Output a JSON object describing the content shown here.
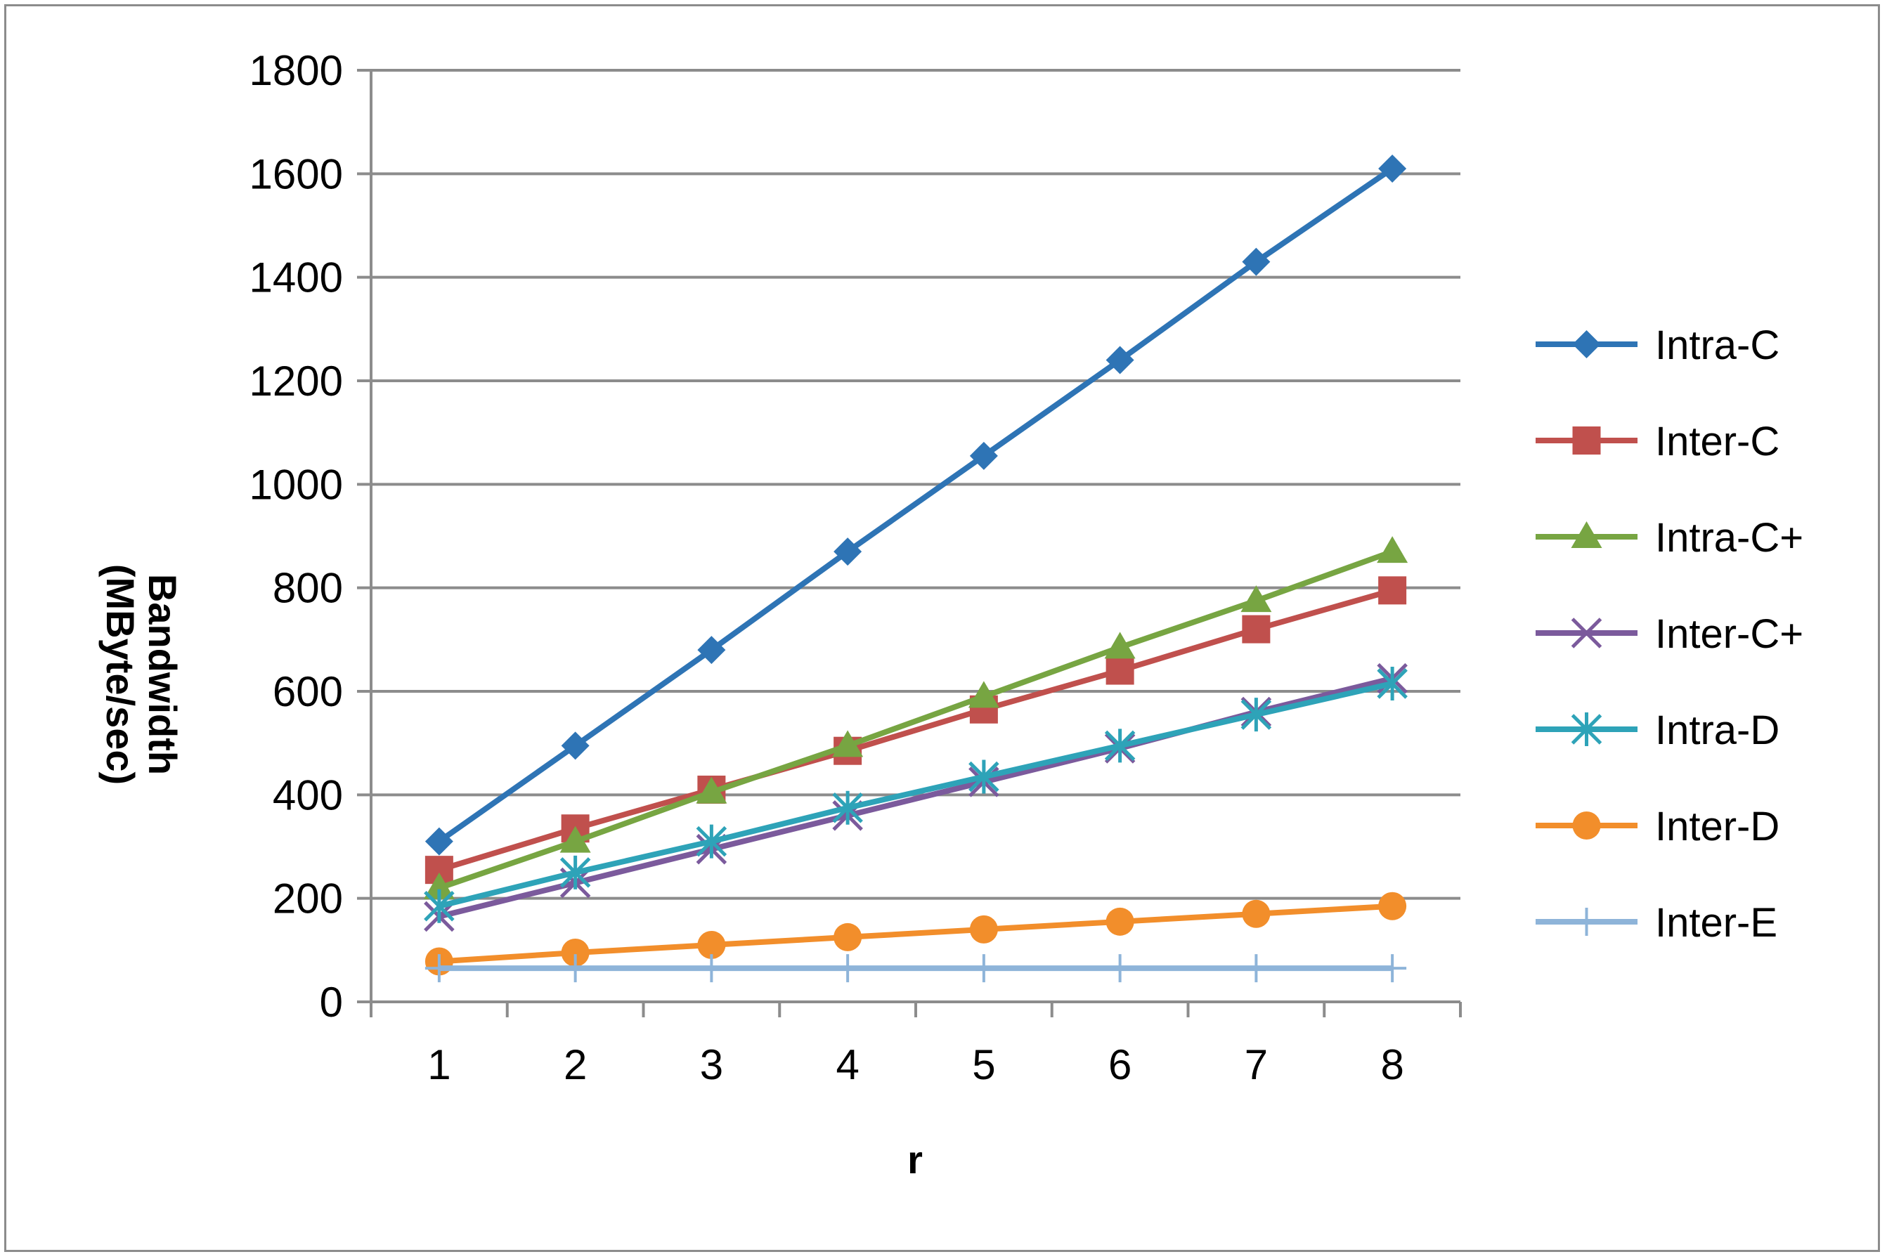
{
  "chart_data": {
    "type": "line",
    "title": "",
    "xlabel": "r",
    "ylabel": "Bandwidth (MByte/sec)",
    "ylabel_lines": [
      "Bandwidth",
      "(MByte/sec)"
    ],
    "categories": [
      "1",
      "2",
      "3",
      "4",
      "5",
      "6",
      "7",
      "8"
    ],
    "ylim": [
      0,
      1800
    ],
    "yticks": [
      "0",
      "200",
      "400",
      "600",
      "800",
      "1000",
      "1200",
      "1400",
      "1600",
      "1800"
    ],
    "grid": true,
    "legend_position": "right",
    "series": [
      {
        "name": "Intra-C",
        "color": "#2E74B5",
        "marker": "diamond",
        "values": [
          310,
          495,
          680,
          870,
          1055,
          1240,
          1430,
          1610
        ]
      },
      {
        "name": "Inter-C",
        "color": "#C0504D",
        "marker": "square",
        "values": [
          255,
          335,
          410,
          485,
          565,
          640,
          720,
          795
        ]
      },
      {
        "name": "Intra-C+",
        "color": "#77A542",
        "marker": "triangle",
        "values": [
          220,
          310,
          405,
          495,
          590,
          685,
          775,
          870
        ]
      },
      {
        "name": "Inter-C+",
        "color": "#7B5A9C",
        "marker": "x",
        "values": [
          165,
          230,
          295,
          360,
          425,
          490,
          560,
          625
        ]
      },
      {
        "name": "Intra-D",
        "color": "#2EA3B8",
        "marker": "star",
        "values": [
          185,
          250,
          310,
          375,
          435,
          495,
          555,
          615
        ]
      },
      {
        "name": "Inter-D",
        "color": "#F28E2B",
        "marker": "circle",
        "values": [
          78,
          95,
          110,
          125,
          140,
          155,
          170,
          185
        ]
      },
      {
        "name": "Inter-E",
        "color": "#8EB4D9",
        "marker": "plus",
        "values": [
          65,
          65,
          65,
          65,
          65,
          65,
          65,
          65
        ]
      }
    ]
  }
}
